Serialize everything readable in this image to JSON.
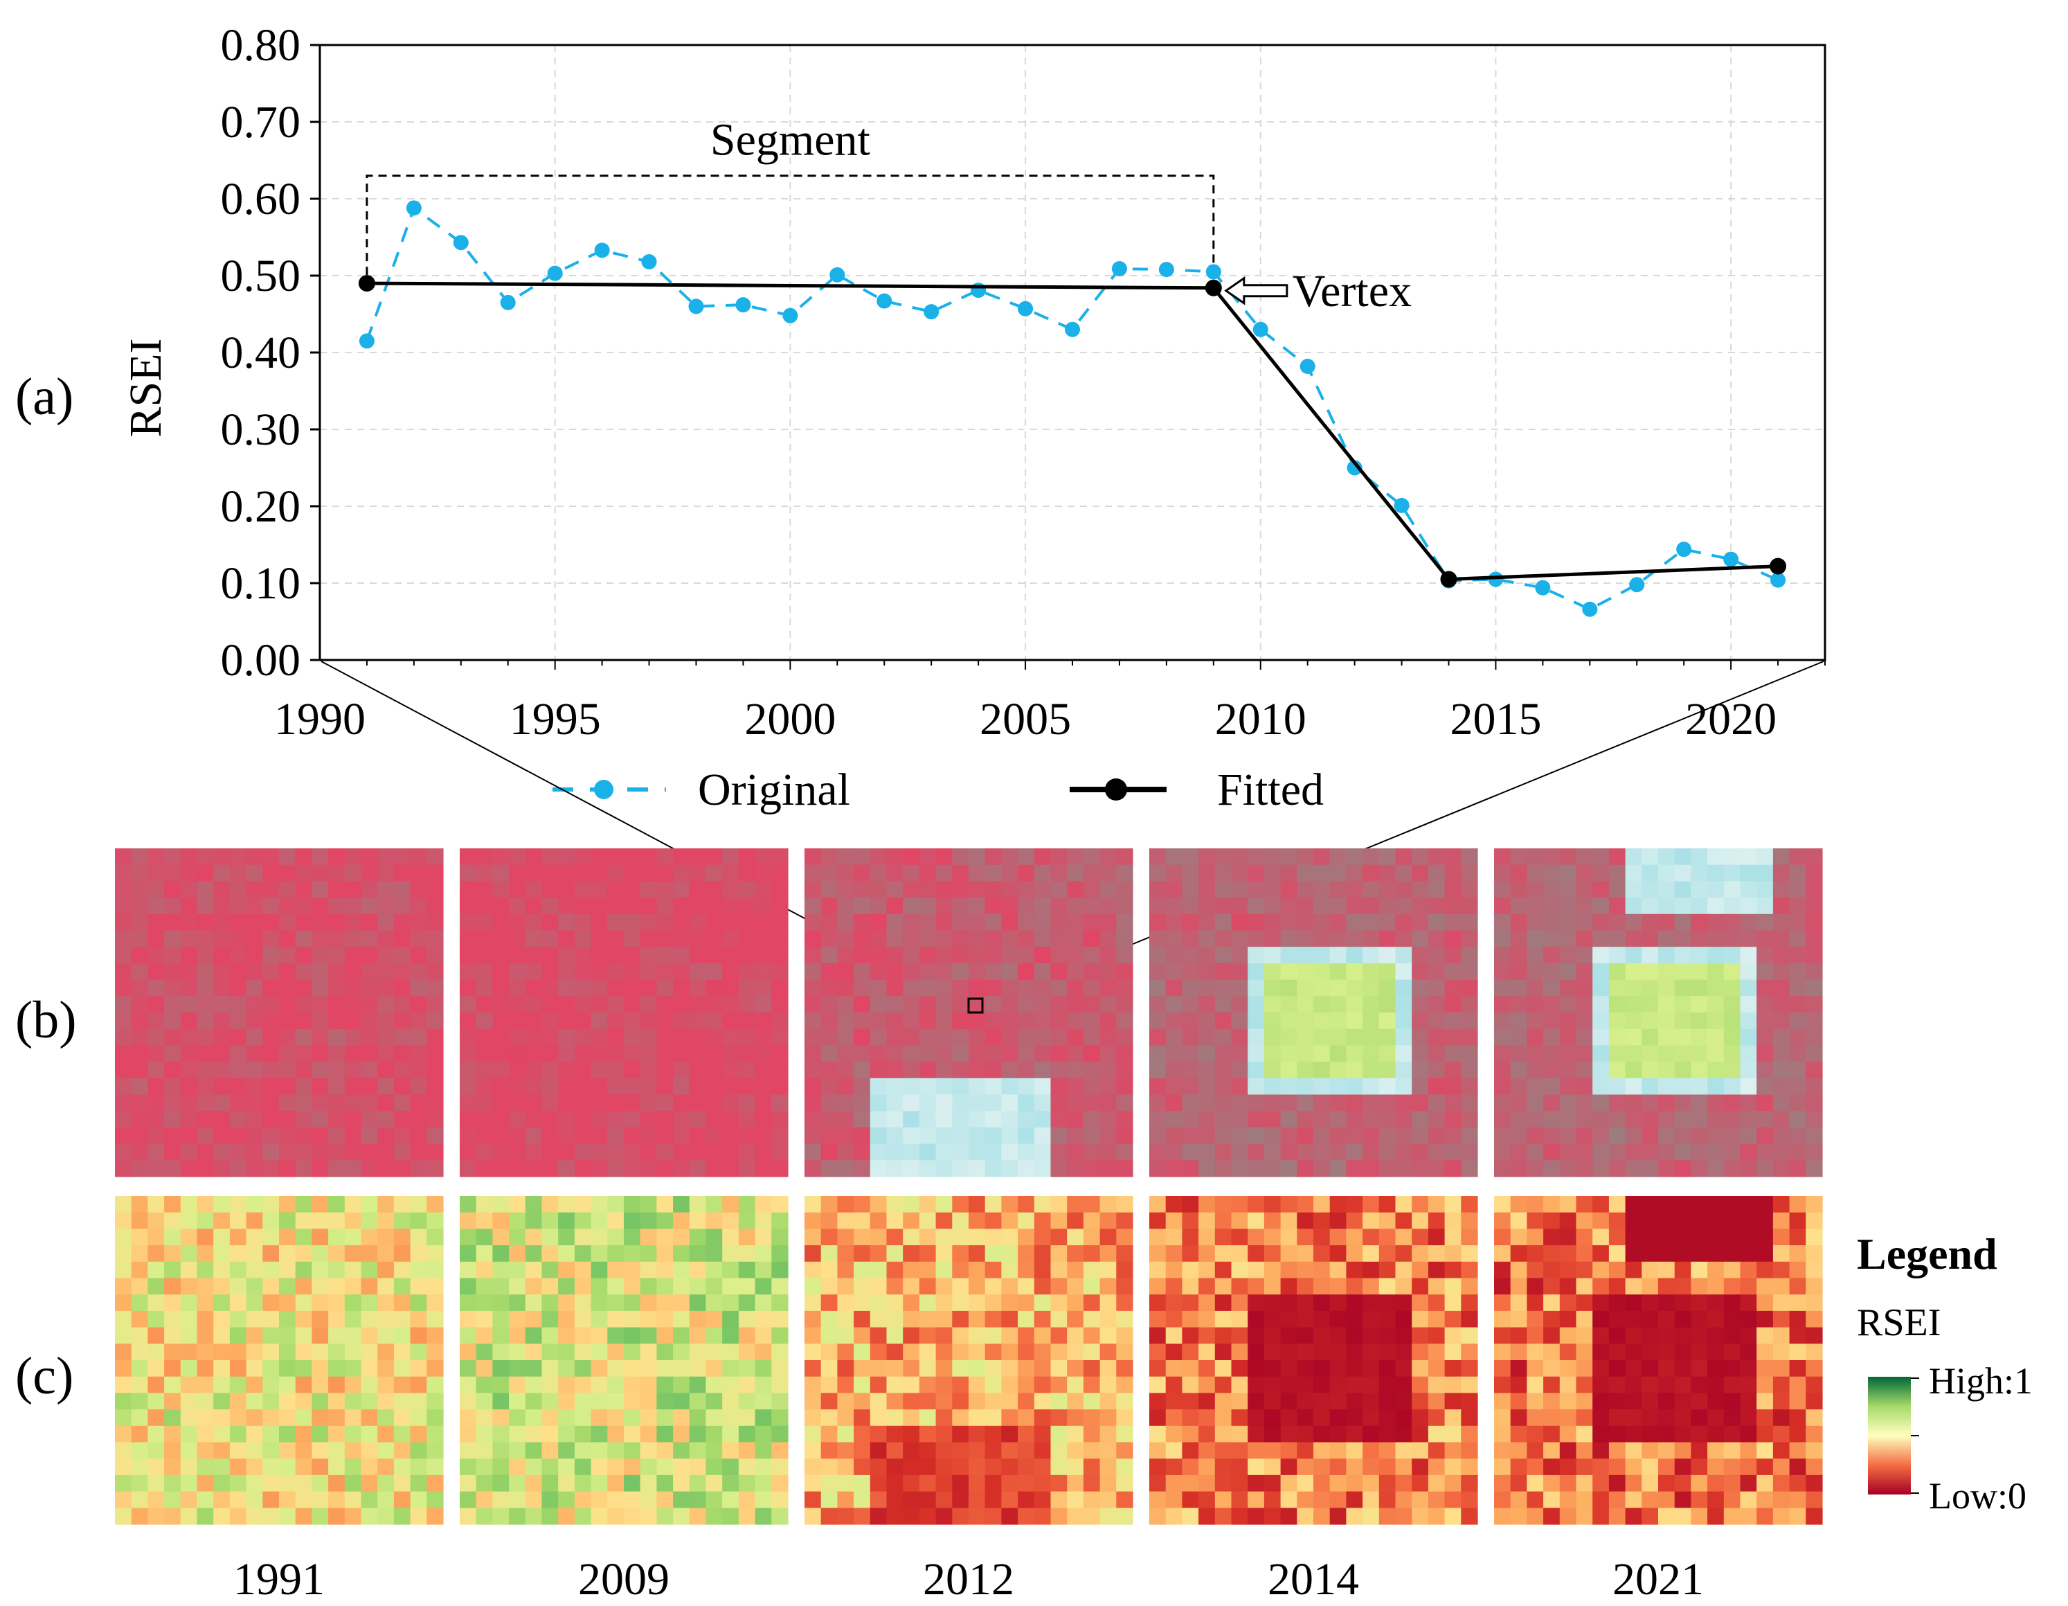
{
  "panel_labels": {
    "a": "(a)",
    "b": "(b)",
    "c": "(c)"
  },
  "chart_data": {
    "type": "line",
    "ylabel": "RSEI",
    "xlabel": "",
    "xlim": [
      1990,
      2022
    ],
    "ylim": [
      0,
      0.8
    ],
    "xticks": [
      1990,
      1995,
      2000,
      2005,
      2010,
      2015,
      2020
    ],
    "yticks": [
      "0.00",
      "0.10",
      "0.20",
      "0.30",
      "0.40",
      "0.50",
      "0.60",
      "0.70",
      "0.80"
    ],
    "grid": true,
    "series": [
      {
        "name": "Original",
        "color": "#1AB0E8",
        "style": "dashed",
        "x": [
          1991,
          1992,
          1993,
          1994,
          1995,
          1996,
          1997,
          1998,
          1999,
          2000,
          2001,
          2002,
          2003,
          2004,
          2005,
          2006,
          2007,
          2008,
          2009,
          2010,
          2011,
          2012,
          2013,
          2014,
          2015,
          2016,
          2017,
          2018,
          2019,
          2020,
          2021
        ],
        "values": [
          0.415,
          0.588,
          0.543,
          0.465,
          0.503,
          0.533,
          0.518,
          0.46,
          0.462,
          0.448,
          0.501,
          0.467,
          0.453,
          0.481,
          0.457,
          0.43,
          0.509,
          0.508,
          0.505,
          0.43,
          0.382,
          0.25,
          0.201,
          0.103,
          0.105,
          0.094,
          0.066,
          0.098,
          0.144,
          0.131,
          0.104
        ]
      },
      {
        "name": "Fitted",
        "color": "#000000",
        "style": "solid",
        "x": [
          1991,
          2009,
          2014,
          2021
        ],
        "values": [
          0.49,
          0.484,
          0.105,
          0.122
        ]
      }
    ],
    "annotations": {
      "segment": "Segment",
      "vertex": "Vertex"
    },
    "legend_position": "bottom"
  },
  "image_panels": {
    "years": [
      "1991",
      "2009",
      "2012",
      "2014",
      "2021"
    ]
  },
  "rsei_legend": {
    "title": "Legend",
    "subtitle": "RSEI",
    "high": "High:1",
    "low": "Low:0"
  }
}
